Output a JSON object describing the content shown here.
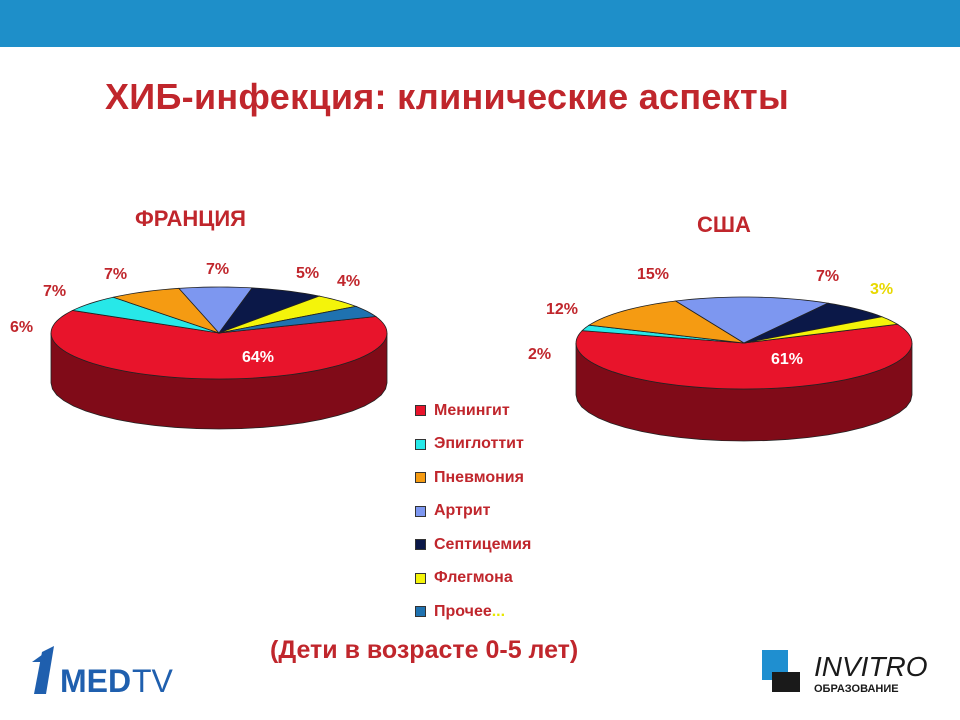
{
  "slide": {
    "title": "ХИБ-инфекция: клинические аспекты",
    "subtitle": "(Дети в возрасте 0-5 лет)",
    "accent_color": "#c0262c",
    "topbar_color": "#1e8fc9"
  },
  "legend": {
    "items": [
      {
        "label": "Менингит",
        "color": "#e8142b"
      },
      {
        "label": "Эпиглоттит",
        "color": "#27e8e8"
      },
      {
        "label": "Пневмония",
        "color": "#f59b12"
      },
      {
        "label": "Артрит",
        "color": "#7d97f0"
      },
      {
        "label": "Септицемия",
        "color": "#0b1848"
      },
      {
        "label": "Флегмона",
        "color": "#f4f40a"
      },
      {
        "label": "Прочее",
        "color": "#1f72b0",
        "suffix": "..."
      }
    ]
  },
  "chart_data": [
    {
      "type": "pie",
      "title": "ФРАНЦИЯ",
      "categories": [
        "Менингит",
        "Эпиглоттит",
        "Пневмония",
        "Артрит",
        "Септицемия",
        "Флегмона",
        "Прочее"
      ],
      "values": [
        64,
        6,
        7,
        7,
        7,
        5,
        4
      ],
      "labels": [
        "64%",
        "6%",
        "7%",
        "7%",
        "7%",
        "5%",
        "4%"
      ]
    },
    {
      "type": "pie",
      "title": "США",
      "categories": [
        "Менингит",
        "Эпиглоттит",
        "Пневмония",
        "Артрит",
        "Септицемия",
        "Флегмона",
        "Прочее"
      ],
      "values": [
        61,
        2,
        12,
        15,
        7,
        3,
        0
      ],
      "labels": [
        "61%",
        "2%",
        "12%",
        "15%",
        "7%",
        "3%",
        ""
      ]
    }
  ],
  "logos": {
    "left": {
      "digit": "1",
      "text": "MEDTV"
    },
    "right": {
      "name": "INVITRO",
      "tagline": "ОБРАЗОВАНИЕ"
    }
  }
}
